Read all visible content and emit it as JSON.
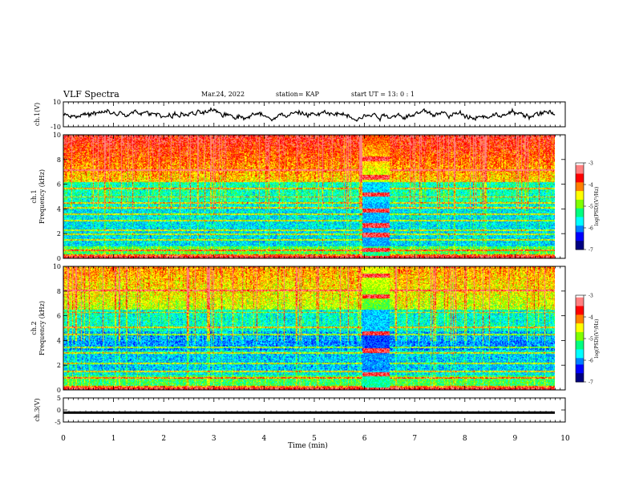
{
  "header": {
    "title": "VLF Spectra",
    "date": "Mar.24, 2022",
    "station": "station= KAP",
    "start": "start  UT =  13: 0  : 1"
  },
  "chart_data": [
    {
      "type": "line",
      "panel": "ch1-waveform",
      "ylabel": "ch.1(V)",
      "ylim": [
        -10,
        10
      ],
      "yticks": [
        "10",
        "-10"
      ],
      "xlim": [
        0,
        10
      ],
      "series": [
        {
          "values_note": "noisy waveform around 0 V, amplitude ±5 V"
        }
      ]
    },
    {
      "type": "heatmap",
      "panel": "ch1-spectrogram",
      "ylabel": "ch.1\nFrequency (kHz)",
      "ylabel_channel": "ch.1",
      "ylabel_quantity": "Frequency (kHz)",
      "ylim": [
        0,
        10
      ],
      "yticks": [
        "0",
        "2",
        "4",
        "6",
        "8",
        "10"
      ],
      "xlim": [
        0,
        9.8
      ],
      "colorbar": {
        "label": "log(PSD)(V²/Hz)",
        "range": [
          -7,
          -3
        ],
        "ticks": [
          "-3",
          "-4",
          "-5",
          "-6",
          "-7"
        ]
      },
      "features": {
        "horizontal_lines_khz": [
          0.3,
          0.7,
          1.5,
          2.0,
          2.3,
          3.1,
          3.6,
          4.1,
          4.5,
          5.0,
          5.7,
          7.2
        ],
        "interference_window_min": [
          5.95,
          6.5
        ],
        "interference_bands_khz": [
          0.7,
          1.9,
          2.7,
          3.9,
          5.2,
          6.6,
          8.1
        ]
      }
    },
    {
      "type": "heatmap",
      "panel": "ch2-spectrogram",
      "ylabel": "ch.2\nFrequency (kHz)",
      "ylabel_channel": "ch.2",
      "ylabel_quantity": "Frequency (kHz)",
      "ylim": [
        0,
        10
      ],
      "yticks": [
        "0",
        "2",
        "4",
        "6",
        "8",
        "10"
      ],
      "xlim": [
        0,
        9.8
      ],
      "colorbar": {
        "label": "log(PSD)(V²/Hz)",
        "range": [
          -7,
          -3
        ],
        "ticks": [
          "-3",
          "-4",
          "-5",
          "-6",
          "-7"
        ]
      },
      "features": {
        "horizontal_lines_khz": [
          0.3,
          1.0,
          1.5,
          2.2,
          3.0,
          3.5,
          4.5,
          5.1,
          6.3,
          8.1
        ],
        "interference_window_min": [
          5.95,
          6.5
        ],
        "interference_bands_khz": [
          1.3,
          3.2,
          4.6,
          7.6,
          9.3
        ]
      }
    },
    {
      "type": "line",
      "panel": "ch3-waveform",
      "ylabel": "ch.3(V)",
      "ylim": [
        -5,
        5
      ],
      "yticks": [
        "5",
        "0",
        "-5"
      ],
      "xlim": [
        0,
        10
      ],
      "series": [
        {
          "values_note": "constant signal near -1 V with small spikes"
        }
      ]
    }
  ],
  "x_axis": {
    "label": "Time (min)",
    "ticks": [
      "0",
      "1",
      "2",
      "3",
      "4",
      "5",
      "6",
      "7",
      "8",
      "9",
      "10"
    ],
    "range": [
      0,
      10
    ]
  },
  "colors": {
    "palette": [
      "#000080",
      "#0000ff",
      "#0080ff",
      "#00ffff",
      "#00ff80",
      "#80ff00",
      "#ffff00",
      "#ff8000",
      "#ff0000",
      "#ff8080",
      "#ffffff"
    ]
  }
}
